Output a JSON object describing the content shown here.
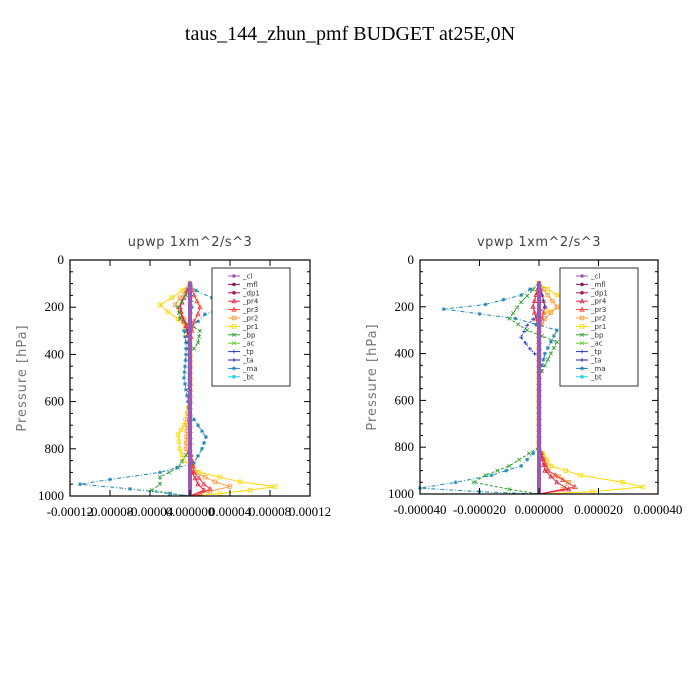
{
  "title": "taus_144_zhun_pmf  BUDGET at25E,0N",
  "colors": {
    "_cl": "#9b59b6",
    "_mfl": "#8e1a5e",
    "_dp1": "#a0175a",
    "_pr4": "#e0284a",
    "_pr3": "#ff4040",
    "_pr2": "#ff9a3c",
    "_pr1": "#ffd700",
    "_bp": "#2ca02c",
    "_ac": "#66cc33",
    "_tp": "#1f3fd0",
    "_ta": "#1a1aa0",
    "_ma": "#1e88b4",
    "_bt": "#22d0e0"
  },
  "chart_data": [
    {
      "type": "line",
      "title": "upwp   1xm^2/s^3",
      "ylabel": "Pressure [hPa]",
      "ylim": [
        1000,
        0
      ],
      "xlim": [
        -0.00012,
        0.00012
      ],
      "yticks": [
        0,
        200,
        400,
        600,
        800,
        1000
      ],
      "ytick_labels": [
        "0",
        "200",
        "400",
        "600",
        "800",
        "1000"
      ],
      "xticks": [
        -0.00012,
        -8e-05,
        -4e-05,
        0,
        4e-05,
        8e-05,
        0.00012
      ],
      "xtick_labels": [
        "-0.00012",
        "-0.00008",
        "-0.00004",
        "0.000000",
        "0.00004",
        "0.00008",
        "0.00012"
      ],
      "legend": [
        "_cl",
        "_mfl",
        "_dp1",
        "_pr4",
        "_pr3",
        "_pr2",
        "_pr1",
        "_bp",
        "_ac",
        "_tp",
        "_ta",
        "_ma",
        "_bt"
      ],
      "legend_position": "top-right",
      "series": [
        {
          "name": "_pr1",
          "p": [
            100,
            130,
            160,
            190,
            220,
            250,
            280,
            320,
            400,
            500,
            600,
            700,
            740,
            800,
            850,
            900,
            940,
            960,
            975,
            990,
            1000
          ],
          "x": [
            0,
            -8e-06,
            -1.8e-05,
            -3e-05,
            -2.2e-05,
            -1.2e-05,
            -5e-06,
            -2e-06,
            0,
            0,
            0,
            -6e-06,
            -1.2e-05,
            -1e-05,
            -6e-06,
            1e-05,
            5e-05,
            8.5e-05,
            6e-05,
            3e-05,
            0
          ]
        },
        {
          "name": "_pr2",
          "p": [
            100,
            130,
            160,
            190,
            220,
            250,
            280,
            320,
            400,
            500,
            600,
            700,
            800,
            900,
            940,
            960,
            980,
            1000
          ],
          "x": [
            0,
            -4e-06,
            -1e-05,
            -1.5e-05,
            -1e-05,
            -6e-06,
            -3e-06,
            0,
            0,
            0,
            0,
            -3e-06,
            -4e-06,
            5e-06,
            2.5e-05,
            4e-05,
            2e-05,
            0
          ]
        },
        {
          "name": "_pr3",
          "p": [
            100,
            150,
            200,
            230,
            260,
            300,
            350,
            400,
            500,
            800,
            900,
            950,
            970,
            990,
            1000
          ],
          "x": [
            0,
            4e-06,
            1e-05,
            8e-06,
            4e-06,
            2e-06,
            0,
            0,
            0,
            0,
            4e-06,
            1.4e-05,
            2e-05,
            1e-05,
            0
          ]
        },
        {
          "name": "_pr4",
          "p": [
            100,
            160,
            200,
            240,
            280,
            320,
            400,
            500,
            800,
            900,
            950,
            975,
            1000
          ],
          "x": [
            0,
            -6e-06,
            -1e-05,
            -8e-06,
            -4e-06,
            -2e-06,
            0,
            0,
            0,
            2e-06,
            8e-06,
            1.4e-05,
            0
          ]
        },
        {
          "name": "_bp",
          "p": [
            100,
            150,
            200,
            250,
            300,
            350,
            400,
            500,
            700,
            800,
            880,
            920,
            950,
            975,
            990,
            1000
          ],
          "x": [
            0,
            -4e-06,
            -1.2e-05,
            -1e-05,
            1e-05,
            8e-06,
            0,
            0,
            0,
            0,
            -1.2e-05,
            -3e-05,
            -3e-05,
            -3.8e-05,
            -2e-05,
            0
          ]
        },
        {
          "name": "_ma",
          "p": [
            100,
            130,
            160,
            200,
            230,
            260,
            300,
            350,
            400,
            500,
            600,
            650,
            700,
            750,
            800,
            860,
            900,
            930,
            950,
            970,
            990,
            1000
          ],
          "x": [
            0,
            6e-06,
            2.2e-05,
            3.5e-05,
            1.5e-05,
            8e-06,
            -6e-06,
            -4e-06,
            -4e-06,
            -6e-06,
            -2e-06,
            0,
            8e-06,
            1.6e-05,
            1.2e-05,
            4e-06,
            -3e-05,
            -8e-05,
            -0.00011,
            -6e-05,
            -2e-05,
            0
          ]
        },
        {
          "name": "_tp",
          "p": [
            100,
            200,
            300,
            400,
            500,
            600,
            700,
            800,
            900,
            1000
          ],
          "x": [
            0,
            2e-06,
            -2e-06,
            0,
            0,
            0,
            0,
            0,
            0,
            0
          ]
        },
        {
          "name": "_mfl",
          "p": [
            100,
            300,
            600,
            900,
            1000
          ],
          "x": [
            0,
            0,
            0,
            0,
            0
          ]
        },
        {
          "name": "_cl",
          "p": [
            100,
            300,
            600,
            900,
            1000
          ],
          "x": [
            0,
            0,
            0,
            0,
            0
          ]
        }
      ]
    },
    {
      "type": "line",
      "title": "vpwp   1xm^2/s^3",
      "ylabel": "Pressure [hPa]",
      "ylim": [
        1000,
        0
      ],
      "xlim": [
        -4e-05,
        4e-05
      ],
      "yticks": [
        0,
        200,
        400,
        600,
        800,
        1000
      ],
      "ytick_labels": [
        "0",
        "200",
        "400",
        "600",
        "800",
        "1000"
      ],
      "xticks": [
        -4e-05,
        -2e-05,
        0,
        2e-05,
        4e-05
      ],
      "xtick_labels": [
        "-0.000040",
        "-0.000020",
        "0.000000",
        "0.000020",
        "0.000040"
      ],
      "legend": [
        "_cl",
        "_mfl",
        "_dp1",
        "_pr4",
        "_pr3",
        "_pr2",
        "_pr1",
        "_bp",
        "_ac",
        "_tp",
        "_ta",
        "_ma",
        "_bt"
      ],
      "legend_position": "top-right",
      "series": [
        {
          "name": "_pr1",
          "p": [
            100,
            150,
            180,
            200,
            220,
            250,
            300,
            400,
            600,
            800,
            880,
            920,
            950,
            970,
            990,
            1000
          ],
          "x": [
            0,
            6e-06,
            1.2e-05,
            8e-06,
            3e-06,
            0,
            0,
            0,
            0,
            0,
            4e-06,
            1.4e-05,
            2.8e-05,
            3.5e-05,
            1.8e-05,
            0
          ]
        },
        {
          "name": "_pr2",
          "p": [
            100,
            150,
            200,
            250,
            300,
            800,
            900,
            950,
            980,
            1000
          ],
          "x": [
            0,
            3e-06,
            6e-06,
            2e-06,
            0,
            0,
            3e-06,
            1e-05,
            8e-06,
            0
          ]
        },
        {
          "name": "_pr3",
          "p": [
            100,
            200,
            300,
            800,
            900,
            940,
            970,
            1000
          ],
          "x": [
            0,
            2e-06,
            0,
            0,
            3e-06,
            8e-06,
            1.2e-05,
            0
          ]
        },
        {
          "name": "_pr4",
          "p": [
            100,
            200,
            300,
            800,
            900,
            950,
            980,
            1000
          ],
          "x": [
            0,
            -2e-06,
            0,
            0,
            2e-06,
            6e-06,
            1e-05,
            0
          ]
        },
        {
          "name": "_bp",
          "p": [
            100,
            180,
            250,
            300,
            350,
            400,
            500,
            800,
            880,
            920,
            950,
            980,
            1000
          ],
          "x": [
            0,
            -6e-06,
            -1e-05,
            -4e-06,
            6e-06,
            4e-06,
            0,
            0,
            -1e-05,
            -1.8e-05,
            -2.2e-05,
            -1e-05,
            0
          ]
        },
        {
          "name": "_ma",
          "p": [
            100,
            150,
            190,
            210,
            250,
            300,
            350,
            400,
            500,
            700,
            800,
            880,
            920,
            950,
            975,
            990,
            1000
          ],
          "x": [
            0,
            -6e-06,
            -1.8e-05,
            -3.2e-05,
            -8e-06,
            6e-06,
            4e-06,
            2e-06,
            0,
            0,
            0,
            -6e-06,
            -1.6e-05,
            -2.8e-05,
            -4e-05,
            -2e-05,
            0
          ]
        },
        {
          "name": "_tp",
          "p": [
            100,
            200,
            280,
            330,
            380,
            420,
            500,
            600,
            800,
            1000
          ],
          "x": [
            0,
            2e-06,
            -4e-06,
            -6e-06,
            -3e-06,
            0,
            0,
            0,
            0,
            0
          ]
        },
        {
          "name": "_mfl",
          "p": [
            100,
            300,
            600,
            900,
            1000
          ],
          "x": [
            0,
            0,
            0,
            0,
            0
          ]
        },
        {
          "name": "_cl",
          "p": [
            100,
            300,
            600,
            900,
            1000
          ],
          "x": [
            0,
            0,
            0,
            0,
            0
          ]
        }
      ]
    }
  ]
}
